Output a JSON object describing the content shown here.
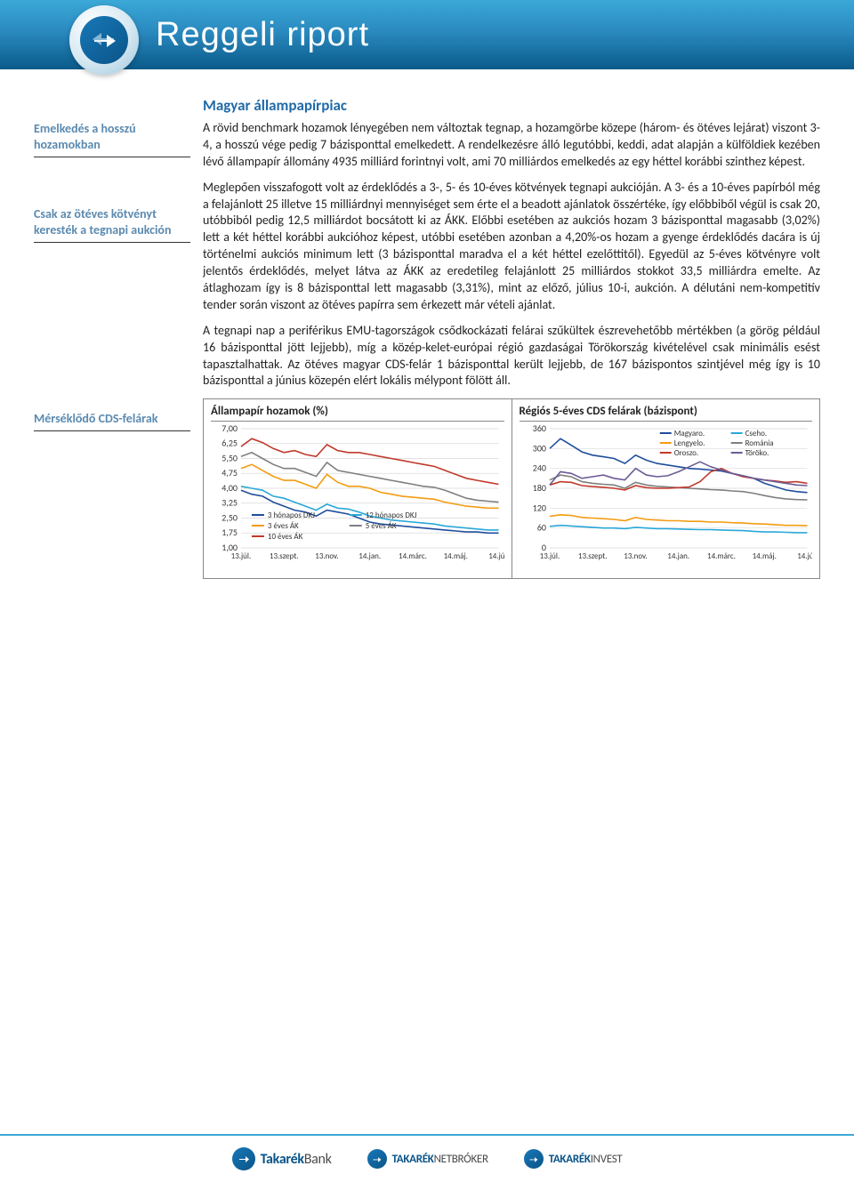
{
  "header": {
    "title": "Reggeli riport"
  },
  "section_title": "Magyar állampapírpiac",
  "side_labels": {
    "s1": "Emelkedés a hosszú hozamokban",
    "s2": "Csak az ötéves kötvényt keresték a tegnapi aukción",
    "s3": "Mérséklődő CDS-felárak"
  },
  "paragraphs": {
    "p1": "A rövid benchmark hozamok lényegében nem változtak tegnap, a hozamgörbe közepe (három- és ötéves lejárat) viszont 3-4, a hosszú vége pedig 7 bázisponttal emelkedett. A rendelkezésre álló legutóbbi, keddi, adat alapján a külföldiek kezében lévő állampapír állomány 4935 milliárd forintnyi volt, ami 70 milliárdos emelkedés az egy héttel korábbi szinthez képest.",
    "p2": "Meglepően visszafogott volt az érdeklődés a 3-, 5- és 10-éves kötvények tegnapi aukcióján. A 3- és a 10-éves papírból még a felajánlott 25 illetve 15 milliárdnyi mennyiséget sem érte el a beadott ajánlatok összértéke, így előbbiből végül is csak 20, utóbbiból pedig 12,5 milliárdot bocsátott ki az ÁKK. Előbbi esetében az aukciós hozam 3 bázisponttal magasabb (3,02%) lett a két héttel korábbi aukcióhoz képest, utóbbi esetében azonban a 4,20%-os hozam a gyenge érdeklődés dacára is új történelmi aukciós minimum lett (3 bázisponttal maradva el a két héttel ezelőttitől). Egyedül az 5-éves kötvényre volt jelentős érdeklődés, melyet látva az ÁKK az eredetileg felajánlott 25 milliárdos stokkot 33,5 milliárdra emelte. Az átlaghozam így is 8 bázisponttal lett magasabb (3,31%), mint az előző, július 10-i, aukción. A délutáni nem-kompetitív tender során viszont az ötéves papírra sem érkezett már vételi ajánlat.",
    "p3": "A tegnapi nap a periférikus EMU-tagországok csődkockázati felárai szűkültek észrevehetőbb mértékben (a görög például 16 bázisponttal jött lejjebb), míg a közép-kelet-európai régió gazdaságai Törökország kivételével csak minimális esést tapasztalhattak. Az ötéves magyar CDS-felár 1 bázisponttal került lejjebb, de 167 bázispontos szintjével még így is 10 bázisponttal a június közepén elért lokális mélypont fölött áll."
  },
  "chart1": {
    "title": "Állampapír hozamok (%)",
    "ylim": [
      1.0,
      7.0
    ],
    "ytick_step": 0.75,
    "yticks": [
      "1,00",
      "1,75",
      "2,50",
      "3,25",
      "4,00",
      "4,75",
      "5,50",
      "6,25",
      "7,00"
    ],
    "xticks": [
      "13.júl.",
      "13.szept.",
      "13.nov.",
      "14.jan.",
      "14.márc.",
      "14.máj.",
      "14.júl."
    ],
    "background_color": "#ffffff",
    "grid_color": "#d9d9d9",
    "series": [
      {
        "name": "3 hónapos DKJ",
        "color": "#1f4e9c",
        "values": [
          3.9,
          3.7,
          3.6,
          3.3,
          3.1,
          2.9,
          2.8,
          2.6,
          2.9,
          2.8,
          2.7,
          2.5,
          2.3,
          2.2,
          2.15,
          2.1,
          2.05,
          2.0,
          1.95,
          1.9,
          1.85,
          1.8,
          1.8,
          1.75,
          1.75
        ]
      },
      {
        "name": "12 hónapos DKJ",
        "color": "#2aa7d8",
        "values": [
          4.1,
          4.0,
          3.9,
          3.6,
          3.5,
          3.3,
          3.1,
          2.9,
          3.2,
          3.0,
          2.95,
          2.8,
          2.6,
          2.5,
          2.4,
          2.35,
          2.3,
          2.25,
          2.2,
          2.1,
          2.05,
          2.0,
          1.95,
          1.9,
          1.9
        ]
      },
      {
        "name": "3 éves ÁK",
        "color": "#f39c12",
        "values": [
          5.0,
          5.2,
          4.9,
          4.6,
          4.4,
          4.4,
          4.2,
          4.0,
          4.7,
          4.3,
          4.1,
          4.1,
          4.0,
          3.8,
          3.7,
          3.6,
          3.55,
          3.5,
          3.45,
          3.3,
          3.2,
          3.1,
          3.05,
          3.0,
          3.0
        ]
      },
      {
        "name": "5 éves ÁK",
        "color": "#7f7f7f",
        "values": [
          5.6,
          5.8,
          5.5,
          5.2,
          5.0,
          5.0,
          4.8,
          4.6,
          5.3,
          4.9,
          4.8,
          4.7,
          4.6,
          4.5,
          4.4,
          4.3,
          4.2,
          4.1,
          4.05,
          3.9,
          3.7,
          3.5,
          3.4,
          3.35,
          3.3
        ]
      },
      {
        "name": "10 éves ÁK",
        "color": "#c0392b",
        "values": [
          6.1,
          6.5,
          6.3,
          6.0,
          5.8,
          5.9,
          5.7,
          5.6,
          6.2,
          5.9,
          5.8,
          5.8,
          5.7,
          5.6,
          5.5,
          5.4,
          5.3,
          5.2,
          5.1,
          4.9,
          4.7,
          4.5,
          4.4,
          4.3,
          4.2
        ]
      }
    ],
    "legend_items": [
      {
        "label": "3 hónapos DKJ",
        "color": "#1f4e9c"
      },
      {
        "label": "12 hónapos DKJ",
        "color": "#2aa7d8"
      },
      {
        "label": "3 éves ÁK",
        "color": "#f39c12"
      },
      {
        "label": "5 éves ÁK",
        "color": "#7f7f7f"
      },
      {
        "label": "10 éves ÁK",
        "color": "#c0392b"
      }
    ]
  },
  "chart2": {
    "title": "Régiós 5-éves CDS felárak (bázispont)",
    "ylim": [
      0,
      360
    ],
    "ytick_step": 60,
    "yticks": [
      "0",
      "60",
      "120",
      "180",
      "240",
      "300",
      "360"
    ],
    "xticks": [
      "13.júl.",
      "13.szept.",
      "13.nov.",
      "14.jan.",
      "14.márc.",
      "14.máj.",
      "14.júl."
    ],
    "background_color": "#ffffff",
    "grid_color": "#d9d9d9",
    "series": [
      {
        "name": "Magyaro.",
        "color": "#1f4e9c",
        "values": [
          300,
          330,
          310,
          290,
          280,
          275,
          270,
          255,
          280,
          265,
          255,
          250,
          245,
          240,
          238,
          235,
          232,
          225,
          218,
          210,
          195,
          185,
          175,
          170,
          167
        ]
      },
      {
        "name": "Cseho.",
        "color": "#2aa7d8",
        "values": [
          65,
          68,
          66,
          64,
          62,
          60,
          60,
          58,
          62,
          60,
          58,
          58,
          57,
          56,
          55,
          55,
          54,
          53,
          52,
          50,
          48,
          48,
          47,
          46,
          46
        ]
      },
      {
        "name": "Lengyelo.",
        "color": "#f39c12",
        "values": [
          95,
          100,
          98,
          92,
          90,
          88,
          86,
          82,
          92,
          86,
          84,
          82,
          82,
          80,
          80,
          78,
          78,
          76,
          75,
          73,
          72,
          70,
          68,
          68,
          67
        ]
      },
      {
        "name": "Románia",
        "color": "#7f7f7f",
        "values": [
          205,
          220,
          215,
          200,
          195,
          192,
          190,
          180,
          198,
          190,
          186,
          184,
          182,
          180,
          178,
          176,
          175,
          172,
          170,
          165,
          158,
          152,
          148,
          146,
          145
        ]
      },
      {
        "name": "Oroszo.",
        "color": "#c0392b",
        "values": [
          190,
          200,
          198,
          188,
          185,
          183,
          180,
          175,
          188,
          182,
          180,
          180,
          182,
          184,
          200,
          230,
          240,
          225,
          215,
          210,
          205,
          202,
          198,
          200,
          195
        ]
      },
      {
        "name": "Töröko.",
        "color": "#6b5b95",
        "values": [
          190,
          230,
          225,
          210,
          215,
          220,
          210,
          205,
          240,
          220,
          215,
          218,
          230,
          245,
          260,
          245,
          235,
          225,
          218,
          210,
          205,
          200,
          195,
          190,
          188
        ]
      }
    ],
    "legend_items": [
      {
        "label": "Magyaro.",
        "color": "#1f4e9c"
      },
      {
        "label": "Cseho.",
        "color": "#2aa7d8"
      },
      {
        "label": "Lengyelo.",
        "color": "#f39c12"
      },
      {
        "label": "Románia",
        "color": "#7f7f7f"
      },
      {
        "label": "Oroszo.",
        "color": "#c0392b"
      },
      {
        "label": "Töröko.",
        "color": "#6b5b95"
      }
    ]
  },
  "footer": {
    "brand1_a": "Takarék",
    "brand1_b": "Bank",
    "brand2_a": "TAKARÉK",
    "brand2_b": "NETBRÓKER",
    "brand3_a": "TAKARÉK",
    "brand3_b": "INVEST"
  }
}
